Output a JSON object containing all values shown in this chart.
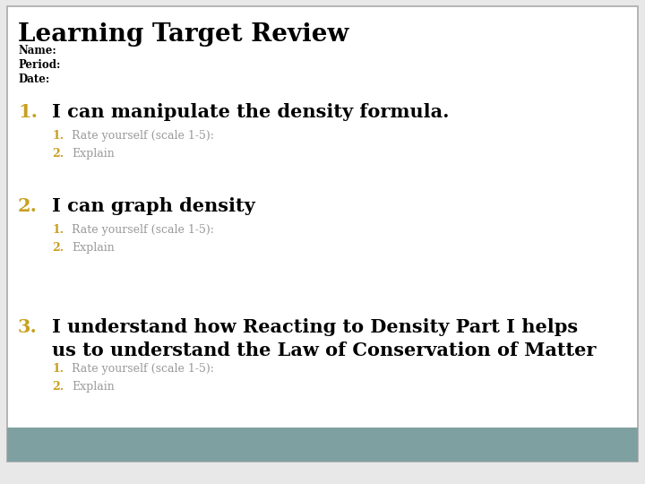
{
  "title": "Learning Target Review",
  "header_labels": [
    "Name:",
    "Period:",
    "Date:"
  ],
  "main_items": [
    {
      "number": "1.",
      "text": "I can manipulate the density formula.",
      "sub_items": [
        {
          "number": "1.",
          "text": "Rate yourself (scale 1-5):"
        },
        {
          "number": "2.",
          "text": "Explain"
        }
      ]
    },
    {
      "number": "2.",
      "text": "I can graph density",
      "sub_items": [
        {
          "number": "1.",
          "text": "Rate yourself (scale 1-5):"
        },
        {
          "number": "2.",
          "text": "Explain"
        }
      ]
    },
    {
      "number": "3.",
      "text": "I understand how Reacting to Density Part I helps\nus to understand the Law of Conservation of Matter",
      "sub_items": [
        {
          "number": "1.",
          "text": "Rate yourself (scale 1-5):"
        },
        {
          "number": "2.",
          "text": "Explain"
        }
      ]
    }
  ],
  "bg_color": "#e8e8e8",
  "border_color": "#aaaaaa",
  "title_color": "#000000",
  "header_color": "#000000",
  "number_color_main": "#c8a020",
  "main_text_color": "#000000",
  "sub_number_color": "#c8a020",
  "sub_text_color": "#999999",
  "footer_color": "#7fa0a0",
  "title_fontsize": 20,
  "header_fontsize": 8.5,
  "main_number_fontsize": 15,
  "main_text_fontsize": 15,
  "sub_number_fontsize": 9,
  "sub_text_fontsize": 9
}
